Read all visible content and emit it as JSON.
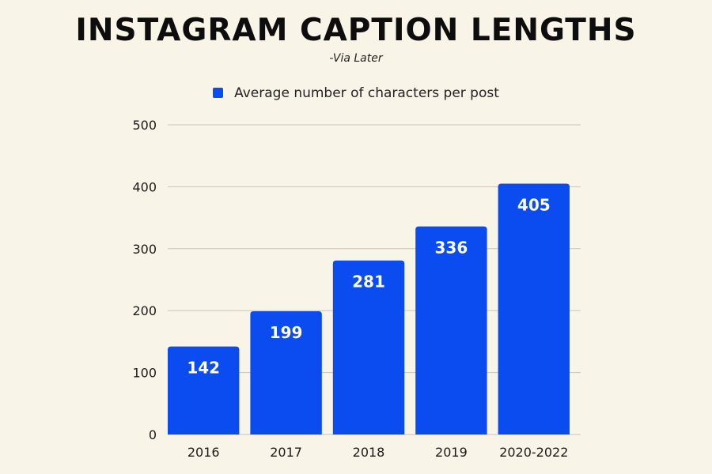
{
  "chart_data": {
    "type": "bar",
    "title": "INSTAGRAM CAPTION LENGTHS",
    "subtitle": "-Via Later",
    "categories": [
      "2016",
      "2017",
      "2018",
      "2019",
      "2020-2022"
    ],
    "series": [
      {
        "name": "Average number of characters per post",
        "values": [
          142,
          199,
          281,
          336,
          405
        ],
        "color": "#0a4cf0"
      }
    ],
    "data_labels": [
      "142",
      "199",
      "281",
      "336",
      "405"
    ],
    "yticks": [
      "0",
      "100",
      "200",
      "300",
      "400",
      "500"
    ],
    "ylim": [
      0,
      500
    ],
    "xlabel": "",
    "ylabel": "",
    "grid": true,
    "legend_position": "top-center",
    "background_color": "#f8f4e8",
    "grid_color": "#c8c4b8"
  }
}
